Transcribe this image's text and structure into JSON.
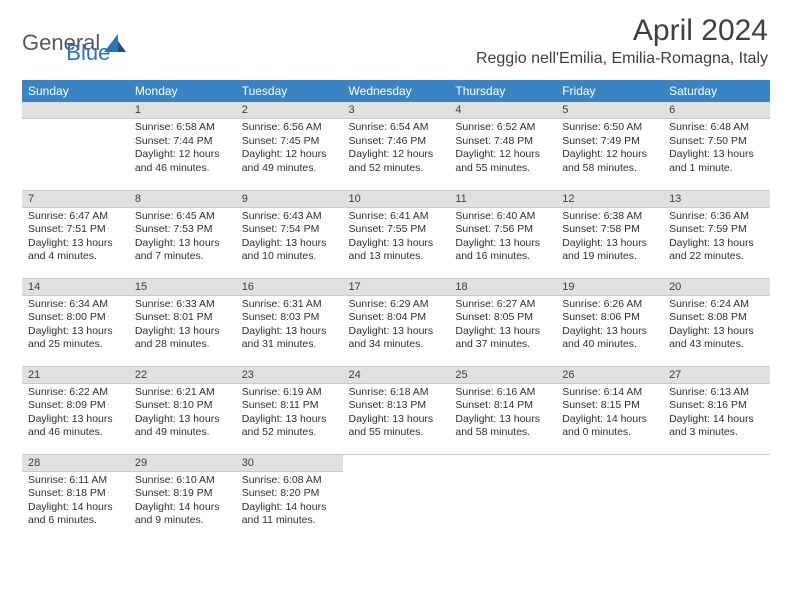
{
  "logo": {
    "text_general": "General",
    "text_blue": "Blue"
  },
  "title": "April 2024",
  "location": "Reggio nell'Emilia, Emilia-Romagna, Italy",
  "colors": {
    "header_bg": "#3a84c4",
    "header_text": "#ffffff",
    "daynum_bg": "#e0e0e0",
    "border": "#b8cce4",
    "text": "#303030",
    "title_text": "#404040",
    "logo_gray": "#5a5a5a",
    "logo_blue": "#2e75b6"
  },
  "day_headers": [
    "Sunday",
    "Monday",
    "Tuesday",
    "Wednesday",
    "Thursday",
    "Friday",
    "Saturday"
  ],
  "weeks": [
    [
      null,
      {
        "n": "1",
        "sunrise": "6:58 AM",
        "sunset": "7:44 PM",
        "daylight": "12 hours and 46 minutes."
      },
      {
        "n": "2",
        "sunrise": "6:56 AM",
        "sunset": "7:45 PM",
        "daylight": "12 hours and 49 minutes."
      },
      {
        "n": "3",
        "sunrise": "6:54 AM",
        "sunset": "7:46 PM",
        "daylight": "12 hours and 52 minutes."
      },
      {
        "n": "4",
        "sunrise": "6:52 AM",
        "sunset": "7:48 PM",
        "daylight": "12 hours and 55 minutes."
      },
      {
        "n": "5",
        "sunrise": "6:50 AM",
        "sunset": "7:49 PM",
        "daylight": "12 hours and 58 minutes."
      },
      {
        "n": "6",
        "sunrise": "6:48 AM",
        "sunset": "7:50 PM",
        "daylight": "13 hours and 1 minute."
      }
    ],
    [
      {
        "n": "7",
        "sunrise": "6:47 AM",
        "sunset": "7:51 PM",
        "daylight": "13 hours and 4 minutes."
      },
      {
        "n": "8",
        "sunrise": "6:45 AM",
        "sunset": "7:53 PM",
        "daylight": "13 hours and 7 minutes."
      },
      {
        "n": "9",
        "sunrise": "6:43 AM",
        "sunset": "7:54 PM",
        "daylight": "13 hours and 10 minutes."
      },
      {
        "n": "10",
        "sunrise": "6:41 AM",
        "sunset": "7:55 PM",
        "daylight": "13 hours and 13 minutes."
      },
      {
        "n": "11",
        "sunrise": "6:40 AM",
        "sunset": "7:56 PM",
        "daylight": "13 hours and 16 minutes."
      },
      {
        "n": "12",
        "sunrise": "6:38 AM",
        "sunset": "7:58 PM",
        "daylight": "13 hours and 19 minutes."
      },
      {
        "n": "13",
        "sunrise": "6:36 AM",
        "sunset": "7:59 PM",
        "daylight": "13 hours and 22 minutes."
      }
    ],
    [
      {
        "n": "14",
        "sunrise": "6:34 AM",
        "sunset": "8:00 PM",
        "daylight": "13 hours and 25 minutes."
      },
      {
        "n": "15",
        "sunrise": "6:33 AM",
        "sunset": "8:01 PM",
        "daylight": "13 hours and 28 minutes."
      },
      {
        "n": "16",
        "sunrise": "6:31 AM",
        "sunset": "8:03 PM",
        "daylight": "13 hours and 31 minutes."
      },
      {
        "n": "17",
        "sunrise": "6:29 AM",
        "sunset": "8:04 PM",
        "daylight": "13 hours and 34 minutes."
      },
      {
        "n": "18",
        "sunrise": "6:27 AM",
        "sunset": "8:05 PM",
        "daylight": "13 hours and 37 minutes."
      },
      {
        "n": "19",
        "sunrise": "6:26 AM",
        "sunset": "8:06 PM",
        "daylight": "13 hours and 40 minutes."
      },
      {
        "n": "20",
        "sunrise": "6:24 AM",
        "sunset": "8:08 PM",
        "daylight": "13 hours and 43 minutes."
      }
    ],
    [
      {
        "n": "21",
        "sunrise": "6:22 AM",
        "sunset": "8:09 PM",
        "daylight": "13 hours and 46 minutes."
      },
      {
        "n": "22",
        "sunrise": "6:21 AM",
        "sunset": "8:10 PM",
        "daylight": "13 hours and 49 minutes."
      },
      {
        "n": "23",
        "sunrise": "6:19 AM",
        "sunset": "8:11 PM",
        "daylight": "13 hours and 52 minutes."
      },
      {
        "n": "24",
        "sunrise": "6:18 AM",
        "sunset": "8:13 PM",
        "daylight": "13 hours and 55 minutes."
      },
      {
        "n": "25",
        "sunrise": "6:16 AM",
        "sunset": "8:14 PM",
        "daylight": "13 hours and 58 minutes."
      },
      {
        "n": "26",
        "sunrise": "6:14 AM",
        "sunset": "8:15 PM",
        "daylight": "14 hours and 0 minutes."
      },
      {
        "n": "27",
        "sunrise": "6:13 AM",
        "sunset": "8:16 PM",
        "daylight": "14 hours and 3 minutes."
      }
    ],
    [
      {
        "n": "28",
        "sunrise": "6:11 AM",
        "sunset": "8:18 PM",
        "daylight": "14 hours and 6 minutes."
      },
      {
        "n": "29",
        "sunrise": "6:10 AM",
        "sunset": "8:19 PM",
        "daylight": "14 hours and 9 minutes."
      },
      {
        "n": "30",
        "sunrise": "6:08 AM",
        "sunset": "8:20 PM",
        "daylight": "14 hours and 11 minutes."
      },
      null,
      null,
      null,
      null
    ]
  ],
  "labels": {
    "sunrise": "Sunrise: ",
    "sunset": "Sunset: ",
    "daylight": "Daylight: "
  }
}
